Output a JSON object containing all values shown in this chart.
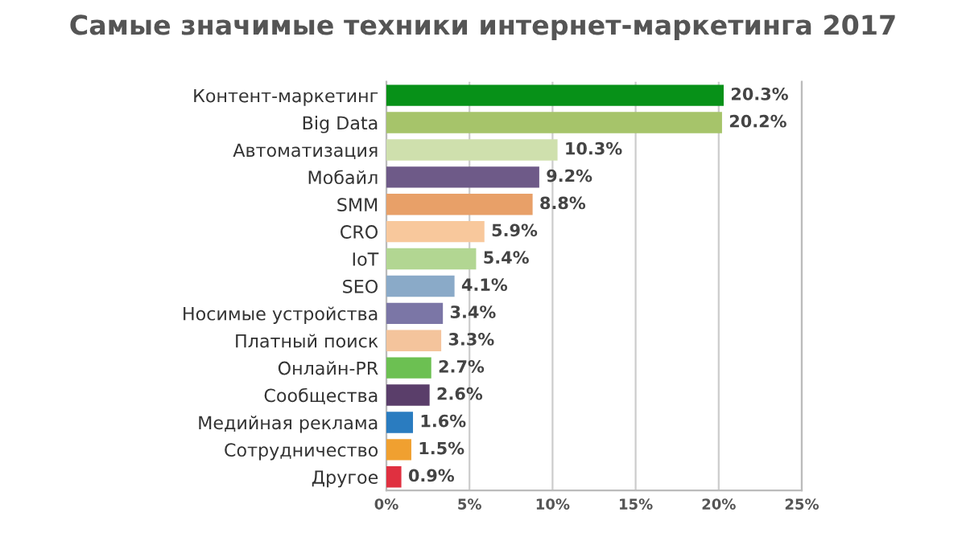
{
  "chart_data": {
    "type": "bar",
    "orientation": "horizontal",
    "title": "Самые значимые техники интернет-маркетинга 2017",
    "categories": [
      "Контент-маркетинг",
      "Big Data",
      "Автоматизация",
      "Мобайл",
      "SMM",
      "CRO",
      "IoT",
      "SEO",
      "Носимые устройства",
      "Платный поиск",
      "Онлайн-PR",
      "Сообщества",
      "Медийная реклама",
      "Сотрудничество",
      "Другое"
    ],
    "values": [
      20.3,
      20.2,
      10.3,
      9.2,
      8.8,
      5.9,
      5.4,
      4.1,
      3.4,
      3.3,
      2.7,
      2.6,
      1.6,
      1.5,
      0.9
    ],
    "colors": [
      "#079118",
      "#a6c46a",
      "#cfe0ad",
      "#6e5a88",
      "#e8a068",
      "#f8c89c",
      "#b2d692",
      "#8aaac8",
      "#7b76a6",
      "#f4c49c",
      "#6cc052",
      "#5a3e6a",
      "#2a7cc0",
      "#f0a030",
      "#e03040"
    ],
    "value_labels": [
      "20.3%",
      "20.2%",
      "10.3%",
      "9.2%",
      "8.8%",
      "5.9%",
      "5.4%",
      "4.1%",
      "3.4%",
      "3.3%",
      "2.7%",
      "2.6%",
      "1.6%",
      "1.5%",
      "0.9%"
    ],
    "xlim": [
      0,
      25
    ],
    "xticks": [
      {
        "value": 0,
        "label": "0%"
      },
      {
        "value": 5,
        "label": "5%"
      },
      {
        "value": 10,
        "label": "10%"
      },
      {
        "value": 15,
        "label": "15%"
      },
      {
        "value": 20,
        "label": "20%"
      },
      {
        "value": 25,
        "label": "25%"
      }
    ],
    "grid": "x"
  }
}
